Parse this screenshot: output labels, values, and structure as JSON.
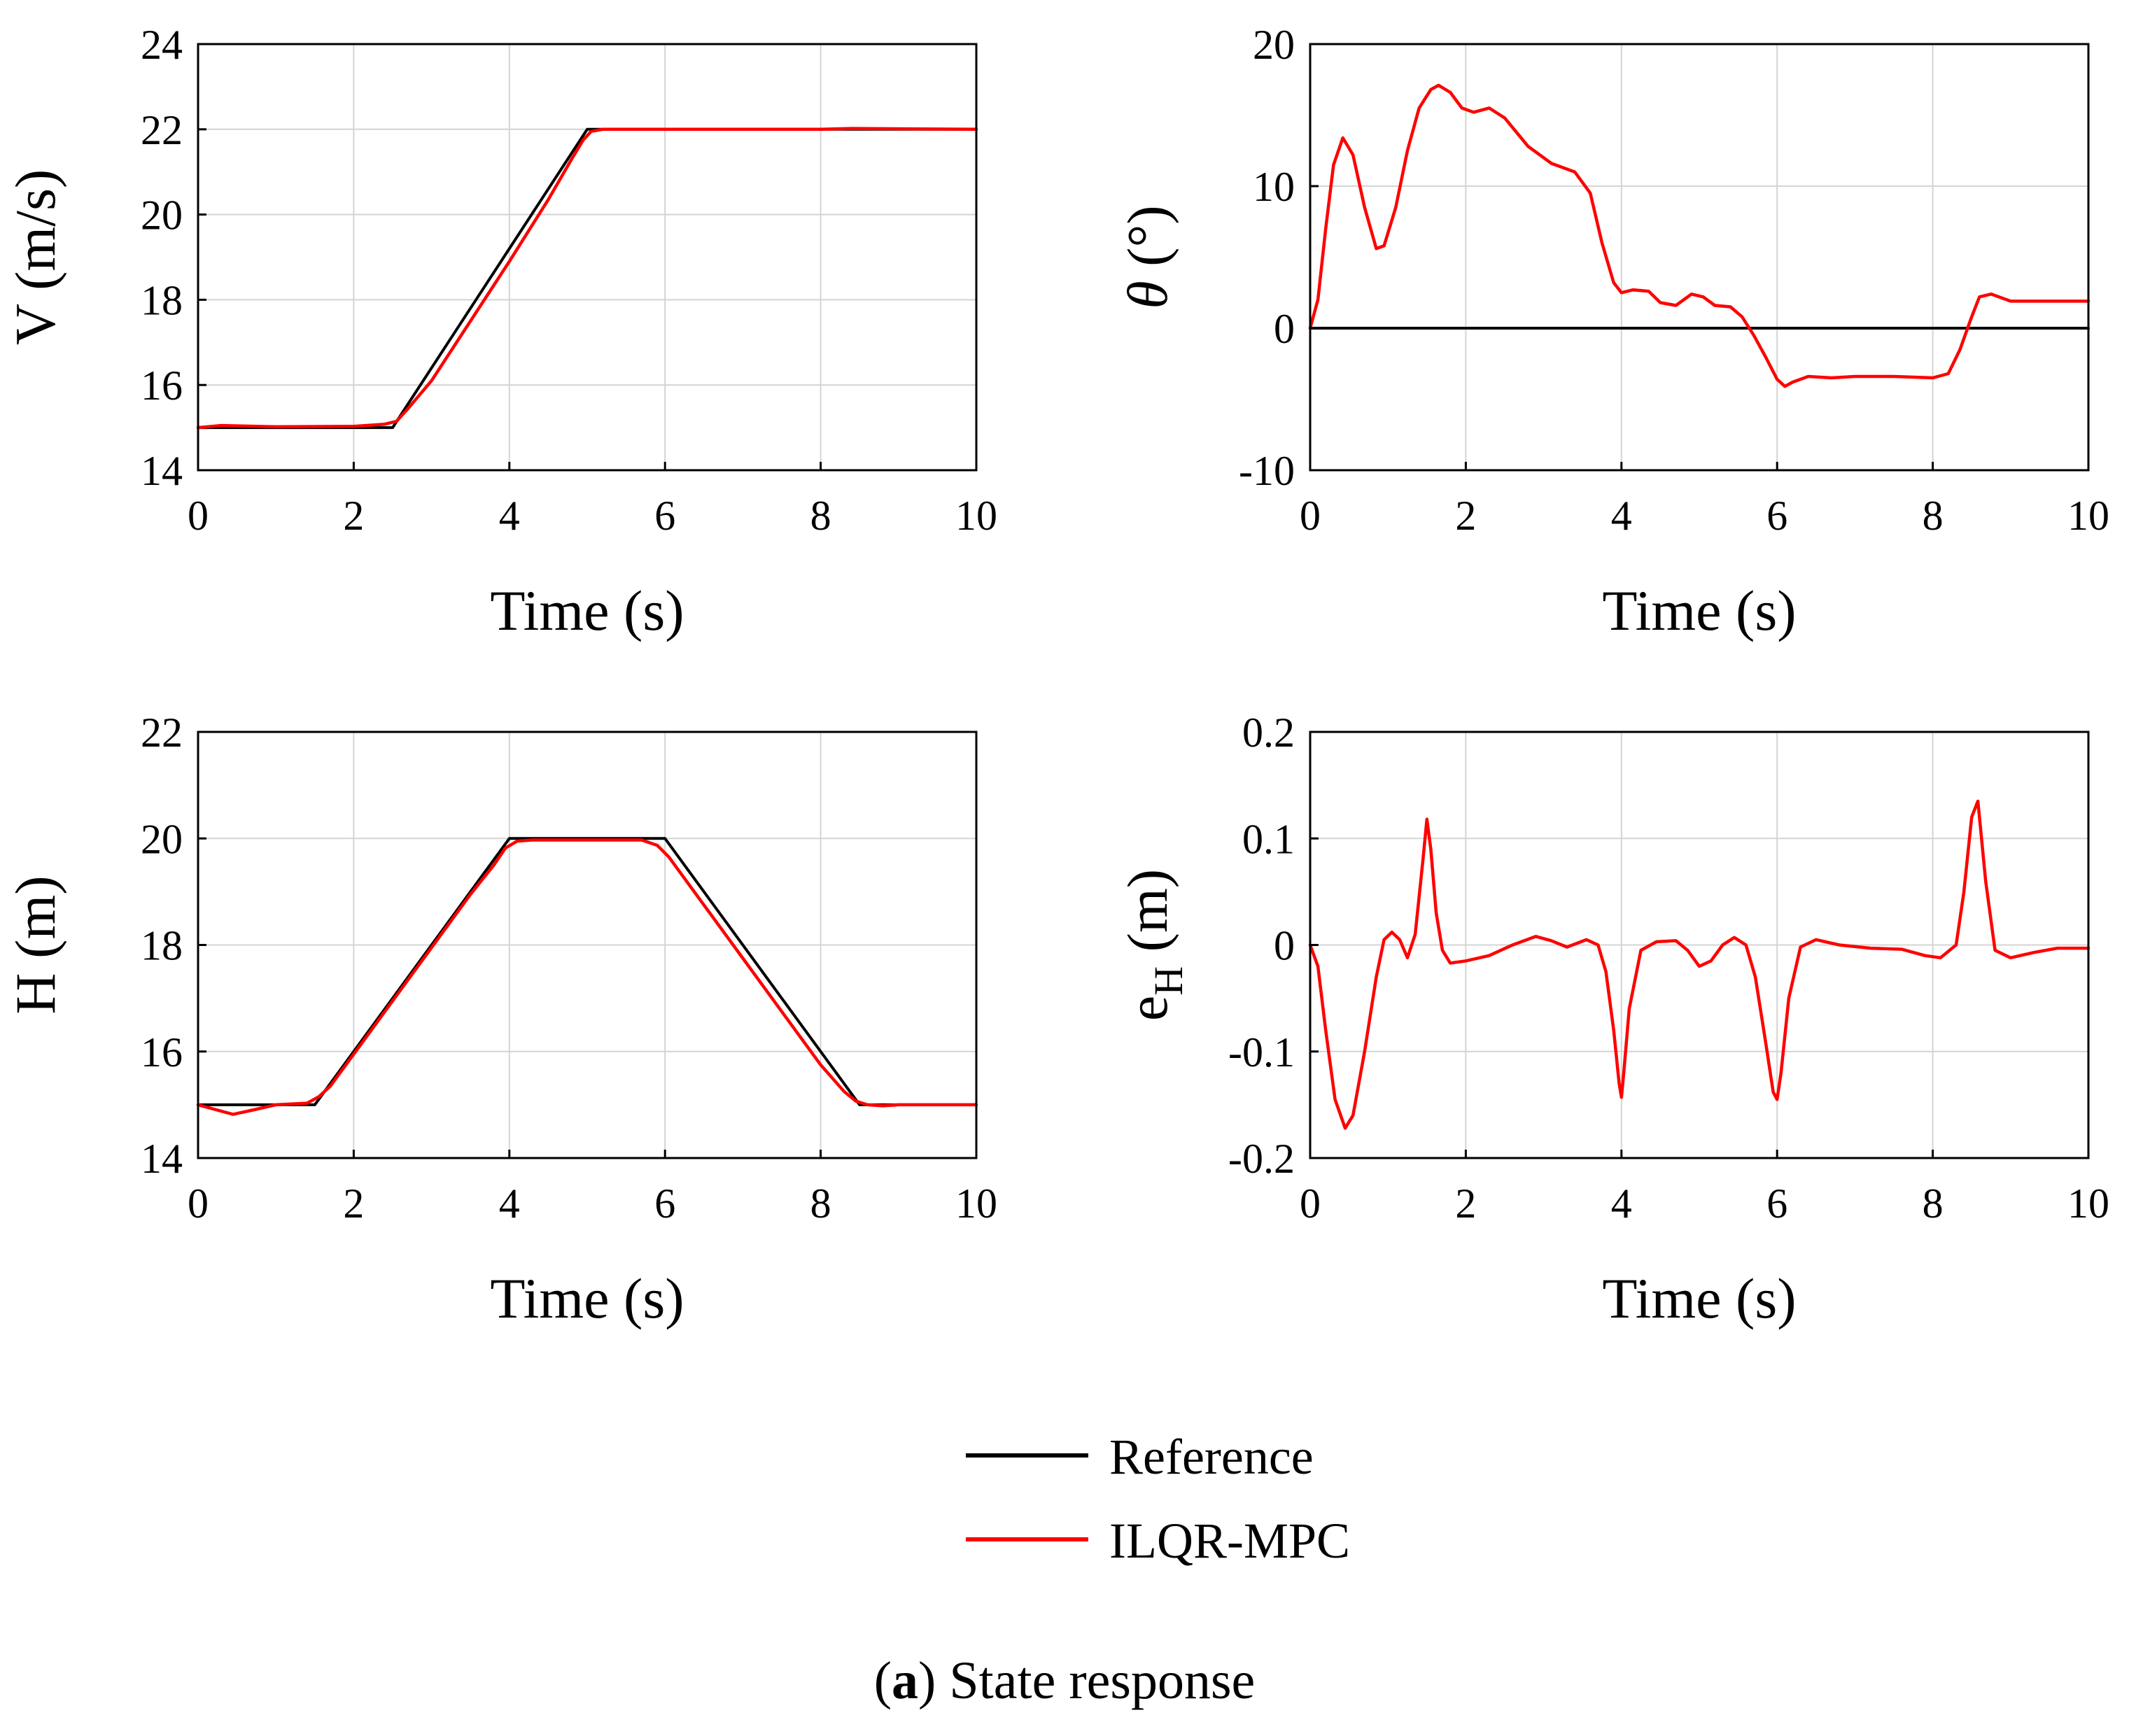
{
  "colors": {
    "reference": "#000000",
    "ilqr_mpc": "#ff0000"
  },
  "legend": {
    "entries": [
      {
        "label": "Reference",
        "color": "#000000"
      },
      {
        "label": "ILQR-MPC",
        "color": "#ff0000"
      }
    ]
  },
  "caption": {
    "letter": "a",
    "open": "(",
    "close": ")",
    "text": " State response"
  },
  "chart_data": [
    {
      "id": "V",
      "type": "line",
      "ylabel": "V (m/s)",
      "xlabel": "Time (s)",
      "xlim": [
        0,
        10
      ],
      "ylim": [
        14,
        24
      ],
      "xticks": [
        0,
        2,
        4,
        6,
        8,
        10
      ],
      "yticks": [
        14,
        16,
        18,
        20,
        22,
        24
      ],
      "ytick_labels": [
        "14",
        "16",
        "18",
        "20",
        "22",
        "24"
      ],
      "grid": true,
      "series": [
        {
          "name": "Reference",
          "color": "#000000",
          "x": [
            0,
            2.5,
            5,
            10
          ],
          "y": [
            15,
            15,
            22,
            22
          ]
        },
        {
          "name": "ILQR-MPC",
          "color": "#ff0000",
          "x": [
            0,
            0.3,
            1,
            2,
            2.4,
            2.55,
            2.7,
            3,
            3.5,
            4,
            4.5,
            4.8,
            4.95,
            5.05,
            5.2,
            6,
            8,
            8.4,
            10
          ],
          "y": [
            15.0,
            15.05,
            15.02,
            15.03,
            15.08,
            15.15,
            15.45,
            16.1,
            17.5,
            18.9,
            20.35,
            21.3,
            21.75,
            21.95,
            22.0,
            22.0,
            22.0,
            22.02,
            22.0
          ]
        }
      ]
    },
    {
      "id": "theta",
      "type": "line",
      "ylabel": "θ (°)",
      "xlabel": "Time (s)",
      "xlim": [
        0,
        10
      ],
      "ylim": [
        -10,
        20
      ],
      "xticks": [
        0,
        2,
        4,
        6,
        8,
        10
      ],
      "yticks": [
        -10,
        0,
        10,
        20
      ],
      "ytick_labels": [
        "-10",
        "0",
        "10",
        "20"
      ],
      "grid": true,
      "series": [
        {
          "name": "Reference",
          "color": "#000000",
          "x": [
            0,
            10
          ],
          "y": [
            0,
            0
          ]
        },
        {
          "name": "ILQR-MPC",
          "color": "#ff0000",
          "x": [
            0,
            0.1,
            0.2,
            0.3,
            0.42,
            0.55,
            0.7,
            0.85,
            0.95,
            1.1,
            1.25,
            1.4,
            1.55,
            1.65,
            1.8,
            1.95,
            2.1,
            2.3,
            2.5,
            2.8,
            3.1,
            3.4,
            3.6,
            3.75,
            3.9,
            4.0,
            4.15,
            4.35,
            4.5,
            4.7,
            4.9,
            5.05,
            5.2,
            5.4,
            5.55,
            5.7,
            5.85,
            6.0,
            6.1,
            6.2,
            6.4,
            6.7,
            7.0,
            7.5,
            8.0,
            8.2,
            8.35,
            8.5,
            8.6,
            8.75,
            9.0,
            9.5,
            10.0
          ],
          "y": [
            0,
            2,
            7,
            11.5,
            13.4,
            12.2,
            8.5,
            5.6,
            5.8,
            8.5,
            12.5,
            15.5,
            16.8,
            17.1,
            16.6,
            15.5,
            15.2,
            15.5,
            14.8,
            12.8,
            11.6,
            11.0,
            9.5,
            6.0,
            3.2,
            2.5,
            2.7,
            2.6,
            1.8,
            1.6,
            2.4,
            2.2,
            1.6,
            1.5,
            0.8,
            -0.5,
            -2.0,
            -3.6,
            -4.1,
            -3.8,
            -3.4,
            -3.5,
            -3.4,
            -3.4,
            -3.5,
            -3.2,
            -1.5,
            0.8,
            2.2,
            2.4,
            1.9,
            1.9,
            1.9
          ]
        }
      ]
    },
    {
      "id": "H",
      "type": "line",
      "ylabel": "H (m)",
      "xlabel": "Time (s)",
      "xlim": [
        0,
        10
      ],
      "ylim": [
        14,
        22
      ],
      "xticks": [
        0,
        2,
        4,
        6,
        8,
        10
      ],
      "yticks": [
        14,
        16,
        18,
        20,
        22
      ],
      "ytick_labels": [
        "14",
        "16",
        "18",
        "20",
        "22"
      ],
      "grid": true,
      "series": [
        {
          "name": "Reference",
          "color": "#000000",
          "x": [
            0,
            1.5,
            4,
            6,
            8.5,
            10
          ],
          "y": [
            15,
            15,
            20,
            20,
            15,
            15
          ]
        },
        {
          "name": "ILQR-MPC",
          "color": "#ff0000",
          "x": [
            0,
            0.2,
            0.45,
            0.7,
            1.0,
            1.4,
            1.55,
            1.7,
            2.0,
            2.5,
            3.0,
            3.5,
            3.8,
            3.95,
            4.1,
            4.3,
            5.0,
            5.7,
            5.9,
            6.05,
            6.2,
            6.5,
            7.0,
            7.5,
            8.0,
            8.3,
            8.45,
            8.6,
            8.8,
            9.0,
            10.0
          ],
          "y": [
            15.0,
            14.92,
            14.82,
            14.9,
            15.0,
            15.03,
            15.15,
            15.35,
            15.95,
            16.95,
            17.95,
            18.95,
            19.5,
            19.82,
            19.95,
            19.97,
            19.97,
            19.97,
            19.87,
            19.65,
            19.35,
            18.75,
            17.75,
            16.75,
            15.75,
            15.25,
            15.07,
            15.0,
            14.98,
            15.0,
            15.0
          ]
        }
      ]
    },
    {
      "id": "eH",
      "type": "line",
      "ylabel": "e",
      "ylabel_subscript": "H",
      "ylabel_suffix": " (m)",
      "xlabel": "Time (s)",
      "xlim": [
        0,
        10
      ],
      "ylim": [
        -0.2,
        0.2
      ],
      "xticks": [
        0,
        2,
        4,
        6,
        8,
        10
      ],
      "yticks": [
        -0.2,
        -0.1,
        0,
        0.1,
        0.2
      ],
      "ytick_labels": [
        "-0.2",
        "-0.1",
        "0",
        "0.1",
        "0.2"
      ],
      "grid": true,
      "series": [
        {
          "name": "ILQR-MPC",
          "color": "#ff0000",
          "x": [
            0,
            0.1,
            0.2,
            0.32,
            0.45,
            0.55,
            0.7,
            0.85,
            0.95,
            1.05,
            1.15,
            1.25,
            1.35,
            1.45,
            1.5,
            1.55,
            1.62,
            1.7,
            1.8,
            2.0,
            2.3,
            2.6,
            2.9,
            3.1,
            3.3,
            3.55,
            3.7,
            3.8,
            3.9,
            3.97,
            4.0,
            4.03,
            4.1,
            4.25,
            4.45,
            4.7,
            4.85,
            5.0,
            5.15,
            5.3,
            5.45,
            5.6,
            5.72,
            5.85,
            5.95,
            6.0,
            6.05,
            6.15,
            6.3,
            6.5,
            6.8,
            7.2,
            7.6,
            7.9,
            8.1,
            8.3,
            8.4,
            8.5,
            8.58,
            8.68,
            8.8,
            9.0,
            9.3,
            9.6,
            10.0
          ],
          "y": [
            0,
            -0.02,
            -0.08,
            -0.145,
            -0.172,
            -0.16,
            -0.1,
            -0.03,
            0.005,
            0.012,
            0.005,
            -0.012,
            0.01,
            0.08,
            0.118,
            0.09,
            0.03,
            -0.005,
            -0.017,
            -0.015,
            -0.01,
            0.0,
            0.008,
            0.004,
            -0.002,
            0.005,
            0.0,
            -0.025,
            -0.08,
            -0.13,
            -0.143,
            -0.12,
            -0.06,
            -0.005,
            0.003,
            0.004,
            -0.005,
            -0.02,
            -0.015,
            0.0,
            0.007,
            0.0,
            -0.03,
            -0.09,
            -0.138,
            -0.145,
            -0.12,
            -0.05,
            -0.002,
            0.005,
            0.0,
            -0.003,
            -0.004,
            -0.01,
            -0.012,
            0.0,
            0.05,
            0.12,
            0.135,
            0.06,
            -0.005,
            -0.012,
            -0.007,
            -0.003,
            -0.003
          ]
        }
      ]
    }
  ]
}
